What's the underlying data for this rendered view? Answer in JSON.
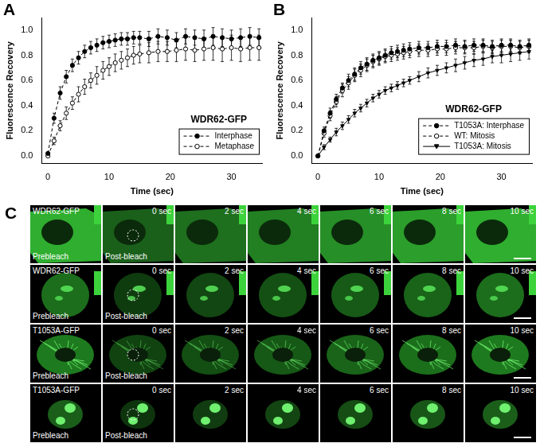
{
  "chart_data": [
    {
      "type": "line",
      "panel_label": "A",
      "annotation": "WDR62-GFP",
      "x_label": "Time (sec)",
      "y_label": "Fluorescence Recovery",
      "x": [
        0,
        1,
        2,
        3,
        4,
        5,
        6,
        7,
        8,
        9,
        10,
        11,
        12,
        13,
        14,
        15,
        16.5,
        18,
        19.5,
        21,
        22.5,
        24,
        25.5,
        27,
        28.5,
        30,
        31.5,
        33,
        34.5
      ],
      "xlim": [
        -1,
        35
      ],
      "xticks": [
        0,
        10,
        20,
        30
      ],
      "ylim": [
        -0.06,
        1.1
      ],
      "yticks": [
        {
          "value": 0,
          "label": "0.0"
        },
        {
          "value": 0.2,
          "label": "0.2"
        },
        {
          "value": 0.4,
          "label": "0.4"
        },
        {
          "value": 0.6,
          "label": "0.6"
        },
        {
          "value": 0.8,
          "label": "0.8"
        },
        {
          "value": 1,
          "label": "1.0"
        }
      ],
      "grid": false,
      "legend": "lower right",
      "series": [
        {
          "name": "Interphase",
          "color": "#000000",
          "marker": "circle",
          "line_style": "dashed",
          "values": [
            0.02,
            0.3,
            0.5,
            0.63,
            0.72,
            0.78,
            0.83,
            0.86,
            0.88,
            0.9,
            0.91,
            0.92,
            0.93,
            0.93,
            0.94,
            0.94,
            0.93,
            0.95,
            0.94,
            0.92,
            0.95,
            0.94,
            0.93,
            0.95,
            0.94,
            0.93,
            0.94,
            0.95,
            0.94
          ],
          "errors": [
            0.01,
            0.04,
            0.05,
            0.05,
            0.05,
            0.05,
            0.05,
            0.05,
            0.05,
            0.05,
            0.05,
            0.05,
            0.05,
            0.05,
            0.05,
            0.05,
            0.06,
            0.06,
            0.06,
            0.06,
            0.06,
            0.06,
            0.07,
            0.07,
            0.07,
            0.07,
            0.07,
            0.07,
            0.07
          ]
        },
        {
          "name": "Metaphase",
          "color": "#000000",
          "marker": "open_circle",
          "line_style": "dashed",
          "values": [
            0,
            0.12,
            0.24,
            0.34,
            0.42,
            0.49,
            0.55,
            0.6,
            0.64,
            0.68,
            0.71,
            0.74,
            0.76,
            0.78,
            0.8,
            0.81,
            0.82,
            0.83,
            0.83,
            0.84,
            0.85,
            0.84,
            0.85,
            0.86,
            0.85,
            0.86,
            0.85,
            0.86,
            0.86
          ],
          "errors": [
            0.01,
            0.03,
            0.04,
            0.05,
            0.05,
            0.06,
            0.06,
            0.06,
            0.07,
            0.07,
            0.07,
            0.07,
            0.07,
            0.07,
            0.07,
            0.07,
            0.08,
            0.08,
            0.08,
            0.09,
            0.09,
            0.09,
            0.09,
            0.1,
            0.1,
            0.1,
            0.1,
            0.1,
            0.1
          ]
        }
      ]
    },
    {
      "type": "line",
      "panel_label": "B",
      "annotation": "WDR62-GFP",
      "x_label": "Time (sec)",
      "y_label": "Fluorescence Recovery",
      "x": [
        0,
        1,
        2,
        3,
        4,
        5,
        6,
        7,
        8,
        9,
        10,
        11,
        12,
        13,
        14,
        15,
        16.5,
        18,
        19.5,
        21,
        22.5,
        24,
        25.5,
        27,
        28.5,
        30,
        31.5,
        33,
        34.5
      ],
      "xlim": [
        -1,
        35
      ],
      "xticks": [
        0,
        10,
        20,
        30
      ],
      "ylim": [
        -0.06,
        1.1
      ],
      "yticks": [
        {
          "value": 0,
          "label": "0.0"
        },
        {
          "value": 0.2,
          "label": "0.2"
        },
        {
          "value": 0.4,
          "label": "0.4"
        },
        {
          "value": 0.6,
          "label": "0.6"
        },
        {
          "value": 0.8,
          "label": "0.8"
        },
        {
          "value": 1,
          "label": "1.0"
        }
      ],
      "grid": false,
      "legend": "lower right",
      "series": [
        {
          "name": "T1053A: Interphase",
          "color": "#000000",
          "marker": "circle",
          "line_style": "dashed",
          "values": [
            0,
            0.2,
            0.34,
            0.45,
            0.54,
            0.6,
            0.65,
            0.7,
            0.73,
            0.76,
            0.78,
            0.8,
            0.82,
            0.83,
            0.84,
            0.85,
            0.86,
            0.86,
            0.87,
            0.87,
            0.88,
            0.87,
            0.88,
            0.88,
            0.87,
            0.88,
            0.88,
            0.87,
            0.88
          ],
          "errors": [
            0.01,
            0.03,
            0.04,
            0.04,
            0.04,
            0.05,
            0.05,
            0.05,
            0.05,
            0.05,
            0.05,
            0.05,
            0.05,
            0.05,
            0.05,
            0.05,
            0.05,
            0.05,
            0.05,
            0.05,
            0.05,
            0.05,
            0.05,
            0.05,
            0.05,
            0.05,
            0.05,
            0.05,
            0.05
          ]
        },
        {
          "name": "WT: Mitosis",
          "color": "#000000",
          "marker": "open_circle",
          "line_style": "dashed",
          "values": [
            0,
            0.18,
            0.32,
            0.43,
            0.52,
            0.58,
            0.64,
            0.68,
            0.72,
            0.75,
            0.77,
            0.79,
            0.8,
            0.81,
            0.82,
            0.83,
            0.84,
            0.84,
            0.85,
            0.85,
            0.86,
            0.86,
            0.86,
            0.87,
            0.86,
            0.87,
            0.87,
            0.86,
            0.87
          ],
          "errors": [
            0.01,
            0.03,
            0.04,
            0.04,
            0.05,
            0.05,
            0.05,
            0.05,
            0.05,
            0.05,
            0.05,
            0.05,
            0.05,
            0.05,
            0.05,
            0.05,
            0.05,
            0.05,
            0.05,
            0.05,
            0.05,
            0.05,
            0.05,
            0.05,
            0.05,
            0.05,
            0.05,
            0.05,
            0.05
          ]
        },
        {
          "name": "T1053A: Mitosis",
          "color": "#000000",
          "marker": "triangle_down",
          "line_style": "solid",
          "values": [
            0,
            0.07,
            0.13,
            0.19,
            0.24,
            0.29,
            0.34,
            0.38,
            0.42,
            0.46,
            0.49,
            0.52,
            0.54,
            0.56,
            0.58,
            0.6,
            0.63,
            0.66,
            0.68,
            0.7,
            0.72,
            0.74,
            0.76,
            0.77,
            0.79,
            0.8,
            0.81,
            0.82,
            0.83
          ],
          "errors": [
            0.01,
            0.02,
            0.02,
            0.03,
            0.03,
            0.03,
            0.03,
            0.03,
            0.03,
            0.03,
            0.03,
            0.03,
            0.03,
            0.03,
            0.03,
            0.03,
            0.04,
            0.04,
            0.04,
            0.04,
            0.05,
            0.05,
            0.05,
            0.05,
            0.05,
            0.06,
            0.06,
            0.06,
            0.06
          ]
        }
      ]
    }
  ],
  "image_grid": {
    "panel_label": "C",
    "rows": [
      "WDR62-GFP",
      "WDR62-GFP",
      "T1053A-GFP",
      "T1053A-GFP"
    ],
    "prebleach_label": "Prebleach",
    "postbleach_label": "Post-bleach",
    "time_labels": [
      "0 sec",
      "2 sec",
      "4 sec",
      "6 sec",
      "8 sec",
      "10 sec"
    ]
  }
}
